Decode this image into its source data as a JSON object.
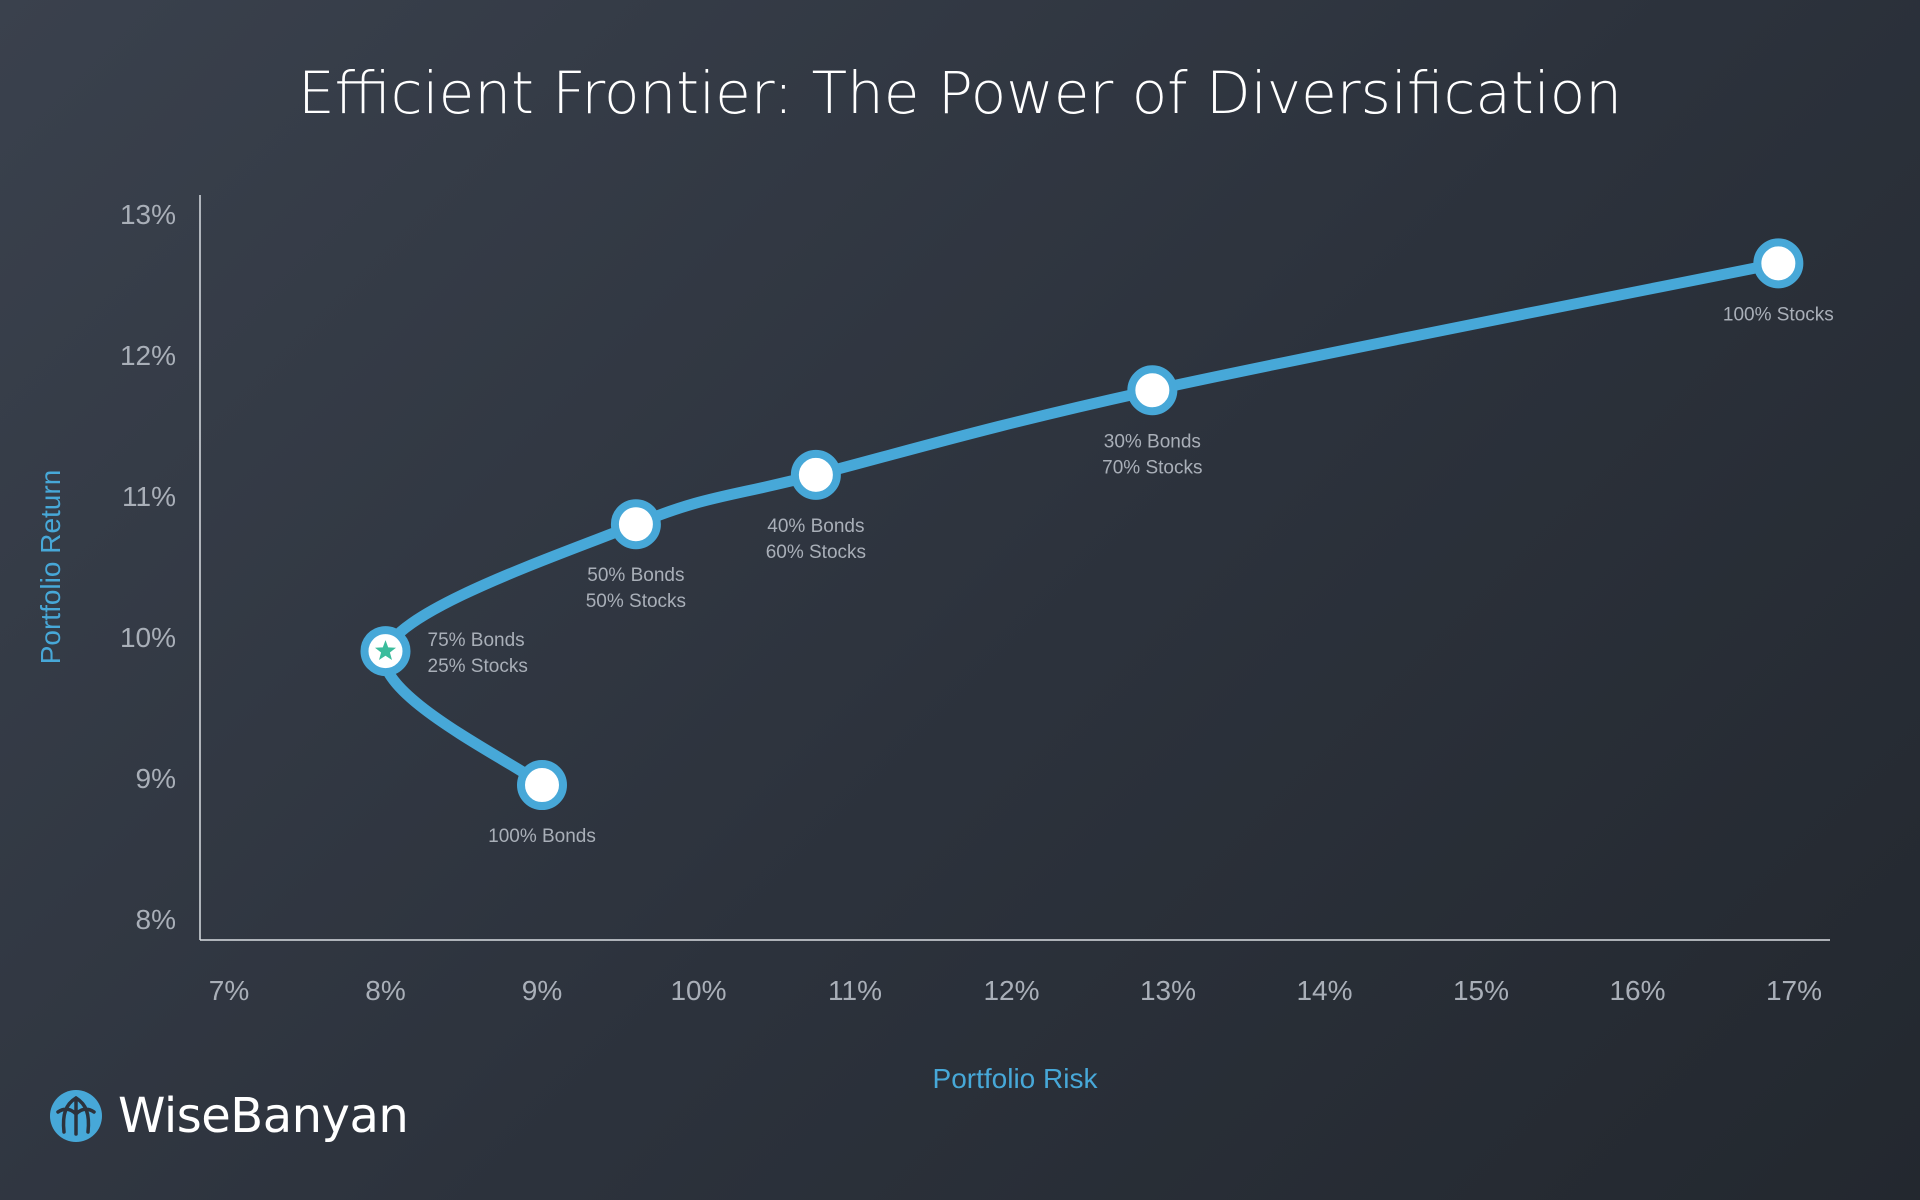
{
  "chart_data": {
    "type": "line",
    "title": "Efficient Frontier: The Power of Diversification",
    "xlabel": "Portfolio Risk",
    "ylabel": "Portfolio Return",
    "xlim": [
      7,
      17
    ],
    "ylim": [
      8,
      13
    ],
    "x_ticks": [
      "7%",
      "8%",
      "9%",
      "10%",
      "11%",
      "12%",
      "13%",
      "14%",
      "15%",
      "16%",
      "17%"
    ],
    "y_ticks": [
      "8%",
      "9%",
      "10%",
      "11%",
      "12%",
      "13%"
    ],
    "series": [
      {
        "points": [
          {
            "x": 9.0,
            "y": 8.95,
            "label": [
              "100% Bonds"
            ]
          },
          {
            "x": 8.0,
            "y": 9.9,
            "label": [
              "75% Bonds",
              "25% Stocks"
            ],
            "marker": "star"
          },
          {
            "x": 9.6,
            "y": 10.8,
            "label": [
              "50% Bonds",
              "50% Stocks"
            ]
          },
          {
            "x": 10.75,
            "y": 11.15,
            "label": [
              "40% Bonds",
              "60% Stocks"
            ]
          },
          {
            "x": 12.9,
            "y": 11.75,
            "label": [
              "30% Bonds",
              "70% Stocks"
            ]
          },
          {
            "x": 16.9,
            "y": 12.65,
            "label": [
              "100% Stocks"
            ]
          }
        ]
      }
    ],
    "grid": false,
    "colors": {
      "line": "#47a8d8",
      "marker_fill": "#ffffff",
      "star": "#3bbc9c",
      "axis_label": "#47a8d8",
      "tick": "#a9afb8",
      "title": "#ffffff",
      "annotation": "#a9afb8"
    }
  },
  "brand": {
    "name": "WiseBanyan",
    "icon": "banyan-tree-logo-icon"
  }
}
